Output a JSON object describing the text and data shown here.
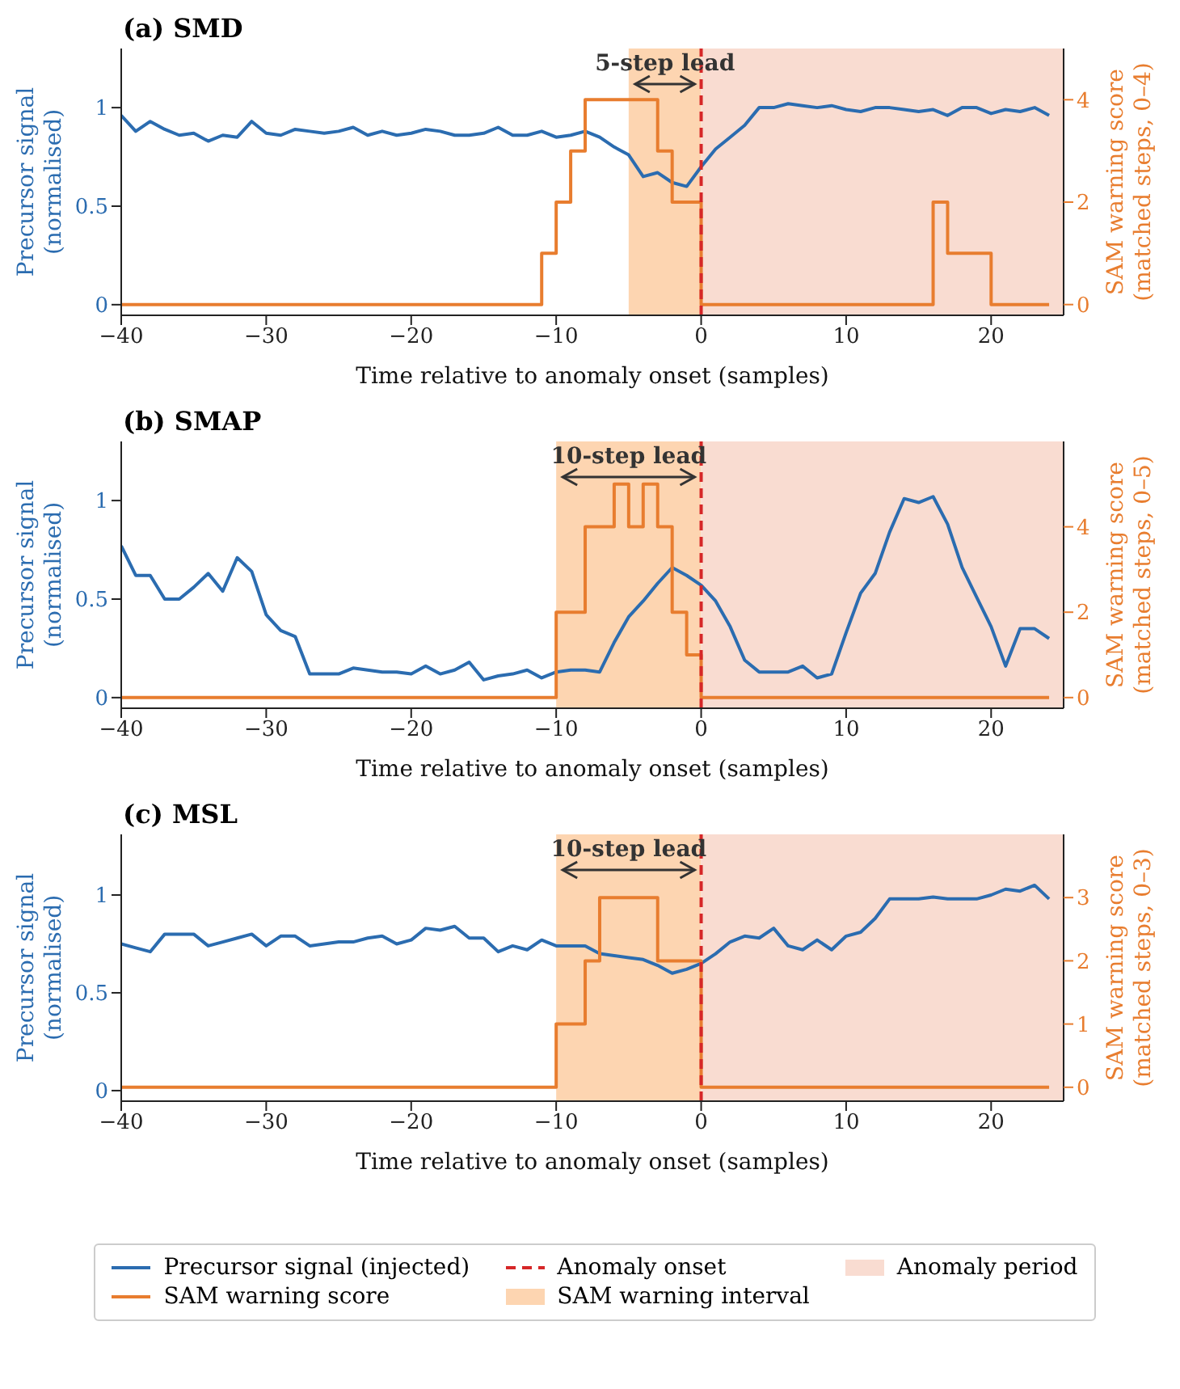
{
  "chart_data": [
    {
      "type": "line",
      "title": "(a) SMD",
      "xlabel": "Time relative to anomaly onset (samples)",
      "ylabel": "Precursor signal\n(normalised)",
      "y2label": "SAM warning score\n(matched steps, 0–4)",
      "x": [
        -40,
        -39,
        -38,
        -37,
        -36,
        -35,
        -34,
        -33,
        -32,
        -31,
        -30,
        -29,
        -28,
        -27,
        -26,
        -25,
        -24,
        -23,
        -22,
        -21,
        -20,
        -19,
        -18,
        -17,
        -16,
        -15,
        -14,
        -13,
        -12,
        -11,
        -10,
        -9,
        -8,
        -7,
        -6,
        -5,
        -4,
        -3,
        -2,
        -1,
        0,
        1,
        2,
        3,
        4,
        5,
        6,
        7,
        8,
        9,
        10,
        11,
        12,
        13,
        14,
        15,
        16,
        17,
        18,
        19,
        20,
        21,
        22,
        23,
        24
      ],
      "series": [
        {
          "type": "line",
          "color": "#2b6cb0",
          "values": [
            0.96,
            0.88,
            0.93,
            0.89,
            0.86,
            0.87,
            0.83,
            0.86,
            0.85,
            0.93,
            0.87,
            0.86,
            0.89,
            0.88,
            0.87,
            0.88,
            0.9,
            0.86,
            0.88,
            0.86,
            0.87,
            0.89,
            0.88,
            0.86,
            0.86,
            0.87,
            0.9,
            0.86,
            0.86,
            0.88,
            0.85,
            0.86,
            0.88,
            0.85,
            0.8,
            0.76,
            0.65,
            0.67,
            0.62,
            0.6,
            0.7,
            0.79,
            0.85,
            0.91,
            1.0,
            1.0,
            1.02,
            1.01,
            1.0,
            1.01,
            0.99,
            0.98,
            1.0,
            1.0,
            0.99,
            0.98,
            0.99,
            0.96,
            1.0,
            1.0,
            0.97,
            0.99,
            0.98,
            1.0,
            0.96
          ]
        },
        {
          "type": "step",
          "axis": "y2",
          "color": "#e87d2f",
          "values": [
            0,
            0,
            0,
            0,
            0,
            0,
            0,
            0,
            0,
            0,
            0,
            0,
            0,
            0,
            0,
            0,
            0,
            0,
            0,
            0,
            0,
            0,
            0,
            0,
            0,
            0,
            0,
            0,
            0,
            1,
            2,
            3,
            4,
            4,
            4,
            4,
            4,
            3,
            2,
            2,
            0,
            0,
            0,
            0,
            0,
            0,
            0,
            0,
            0,
            0,
            0,
            0,
            0,
            0,
            0,
            0,
            2,
            1,
            1,
            1,
            0,
            0,
            0,
            0,
            0
          ]
        }
      ],
      "xlim": [
        -40,
        25
      ],
      "xticks": [
        -40,
        -30,
        -20,
        -10,
        0,
        10,
        20
      ],
      "ylim": [
        -0.054,
        1.3
      ],
      "yticks": [
        0,
        0.5,
        1
      ],
      "y2lim": [
        -0.21,
        5
      ],
      "y2ticks": [
        0,
        2,
        4
      ],
      "ref_lines": [
        {
          "axis": "x",
          "value": 0,
          "color": "#d62728",
          "line_style": "dashed"
        }
      ],
      "bands": [
        {
          "axis": "x",
          "from": -5,
          "to": 0,
          "color": "#fdd5b1"
        },
        {
          "axis": "x",
          "from": 0,
          "to": 25,
          "color": "#f9dcd1"
        }
      ],
      "annotations": [
        "5-step lead"
      ],
      "grid": false,
      "marker": "none",
      "line_style": "solid"
    },
    {
      "type": "line",
      "title": "(b) SMAP",
      "xlabel": "Time relative to anomaly onset (samples)",
      "ylabel": "Precursor signal\n(normalised)",
      "y2label": "SAM warning score\n(matched steps, 0–5)",
      "x": [
        -40,
        -39,
        -38,
        -37,
        -36,
        -35,
        -34,
        -33,
        -32,
        -31,
        -30,
        -29,
        -28,
        -27,
        -26,
        -25,
        -24,
        -23,
        -22,
        -21,
        -20,
        -19,
        -18,
        -17,
        -16,
        -15,
        -14,
        -13,
        -12,
        -11,
        -10,
        -9,
        -8,
        -7,
        -6,
        -5,
        -4,
        -3,
        -2,
        -1,
        0,
        1,
        2,
        3,
        4,
        5,
        6,
        7,
        8,
        9,
        10,
        11,
        12,
        13,
        14,
        15,
        16,
        17,
        18,
        19,
        20,
        21,
        22,
        23,
        24
      ],
      "series": [
        {
          "type": "line",
          "color": "#2b6cb0",
          "values": [
            0.77,
            0.62,
            0.62,
            0.5,
            0.5,
            0.56,
            0.63,
            0.54,
            0.71,
            0.64,
            0.42,
            0.34,
            0.31,
            0.12,
            0.12,
            0.12,
            0.15,
            0.14,
            0.13,
            0.13,
            0.12,
            0.16,
            0.12,
            0.14,
            0.18,
            0.09,
            0.11,
            0.12,
            0.14,
            0.1,
            0.13,
            0.14,
            0.14,
            0.13,
            0.28,
            0.41,
            0.49,
            0.58,
            0.66,
            0.62,
            0.57,
            0.49,
            0.36,
            0.19,
            0.13,
            0.13,
            0.13,
            0.16,
            0.1,
            0.12,
            0.33,
            0.53,
            0.63,
            0.84,
            1.01,
            0.99,
            1.02,
            0.88,
            0.66,
            0.51,
            0.36,
            0.16,
            0.35,
            0.35,
            0.3
          ]
        },
        {
          "type": "step",
          "axis": "y2",
          "color": "#e87d2f",
          "values": [
            0,
            0,
            0,
            0,
            0,
            0,
            0,
            0,
            0,
            0,
            0,
            0,
            0,
            0,
            0,
            0,
            0,
            0,
            0,
            0,
            0,
            0,
            0,
            0,
            0,
            0,
            0,
            0,
            0,
            0,
            2,
            2,
            4,
            4,
            5,
            4,
            5,
            4,
            2,
            1,
            0,
            0,
            0,
            0,
            0,
            0,
            0,
            0,
            0,
            0,
            0,
            0,
            0,
            0,
            0,
            0,
            0,
            0,
            0,
            0,
            0,
            0,
            0,
            0,
            0
          ]
        }
      ],
      "xlim": [
        -40,
        25
      ],
      "xticks": [
        -40,
        -30,
        -20,
        -10,
        0,
        10,
        20
      ],
      "ylim": [
        -0.054,
        1.3
      ],
      "yticks": [
        0,
        0.5,
        1
      ],
      "y2lim": [
        -0.25,
        6
      ],
      "y2ticks": [
        0,
        2,
        4
      ],
      "ref_lines": [
        {
          "axis": "x",
          "value": 0,
          "color": "#d62728",
          "line_style": "dashed"
        }
      ],
      "bands": [
        {
          "axis": "x",
          "from": -10,
          "to": 0,
          "color": "#fdd5b1"
        },
        {
          "axis": "x",
          "from": 0,
          "to": 25,
          "color": "#f9dcd1"
        }
      ],
      "annotations": [
        "10-step lead"
      ],
      "grid": false,
      "marker": "none",
      "line_style": "solid"
    },
    {
      "type": "line",
      "title": "(c) MSL",
      "xlabel": "Time relative to anomaly onset (samples)",
      "ylabel": "Precursor signal\n(normalised)",
      "y2label": "SAM warning score\n(matched steps, 0–3)",
      "x": [
        -40,
        -39,
        -38,
        -37,
        -36,
        -35,
        -34,
        -33,
        -32,
        -31,
        -30,
        -29,
        -28,
        -27,
        -26,
        -25,
        -24,
        -23,
        -22,
        -21,
        -20,
        -19,
        -18,
        -17,
        -16,
        -15,
        -14,
        -13,
        -12,
        -11,
        -10,
        -9,
        -8,
        -7,
        -6,
        -5,
        -4,
        -3,
        -2,
        -1,
        0,
        1,
        2,
        3,
        4,
        5,
        6,
        7,
        8,
        9,
        10,
        11,
        12,
        13,
        14,
        15,
        16,
        17,
        18,
        19,
        20,
        21,
        22,
        23,
        24
      ],
      "series": [
        {
          "name": "Precursor signal (injected)",
          "type": "line",
          "color": "#2b6cb0",
          "values": [
            0.75,
            0.73,
            0.71,
            0.8,
            0.8,
            0.8,
            0.74,
            0.76,
            0.78,
            0.8,
            0.74,
            0.79,
            0.79,
            0.74,
            0.75,
            0.76,
            0.76,
            0.78,
            0.79,
            0.75,
            0.77,
            0.83,
            0.82,
            0.84,
            0.78,
            0.78,
            0.71,
            0.74,
            0.72,
            0.77,
            0.74,
            0.74,
            0.74,
            0.7,
            0.69,
            0.68,
            0.67,
            0.64,
            0.6,
            0.62,
            0.65,
            0.7,
            0.76,
            0.79,
            0.78,
            0.83,
            0.74,
            0.72,
            0.77,
            0.72,
            0.79,
            0.81,
            0.88,
            0.98,
            0.98,
            0.98,
            0.99,
            0.98,
            0.98,
            0.98,
            1.0,
            1.03,
            1.02,
            1.05,
            0.98
          ]
        },
        {
          "name": "SAM warning score",
          "type": "step",
          "axis": "y2",
          "color": "#e87d2f",
          "values": [
            0,
            0,
            0,
            0,
            0,
            0,
            0,
            0,
            0,
            0,
            0,
            0,
            0,
            0,
            0,
            0,
            0,
            0,
            0,
            0,
            0,
            0,
            0,
            0,
            0,
            0,
            0,
            0,
            0,
            0,
            1,
            1,
            2,
            3,
            3,
            3,
            3,
            2,
            2,
            2,
            0,
            0,
            0,
            0,
            0,
            0,
            0,
            0,
            0,
            0,
            0,
            0,
            0,
            0,
            0,
            0,
            0,
            0,
            0,
            0,
            0,
            0,
            0,
            0,
            0
          ]
        }
      ],
      "xlim": [
        -40,
        25
      ],
      "xticks": [
        -40,
        -30,
        -20,
        -10,
        0,
        10,
        20
      ],
      "ylim": [
        -0.054,
        1.31
      ],
      "yticks": [
        0,
        0.5,
        1
      ],
      "y2lim": [
        -0.22,
        4
      ],
      "y2ticks": [
        0,
        1,
        2,
        3
      ],
      "ref_lines": [
        {
          "axis": "x",
          "value": 0,
          "label": "Anomaly onset",
          "color": "#d62728",
          "line_style": "dashed"
        }
      ],
      "bands": [
        {
          "axis": "x",
          "from": -10,
          "to": 0,
          "label": "SAM warning interval",
          "color": "#fdd5b1"
        },
        {
          "axis": "x",
          "from": 0,
          "to": 25,
          "label": "Anomaly period",
          "color": "#f9dcd1"
        }
      ],
      "annotations": [
        "10-step lead"
      ],
      "grid": false,
      "marker": "none",
      "line_style": "solid",
      "legend": "bottom"
    }
  ]
}
